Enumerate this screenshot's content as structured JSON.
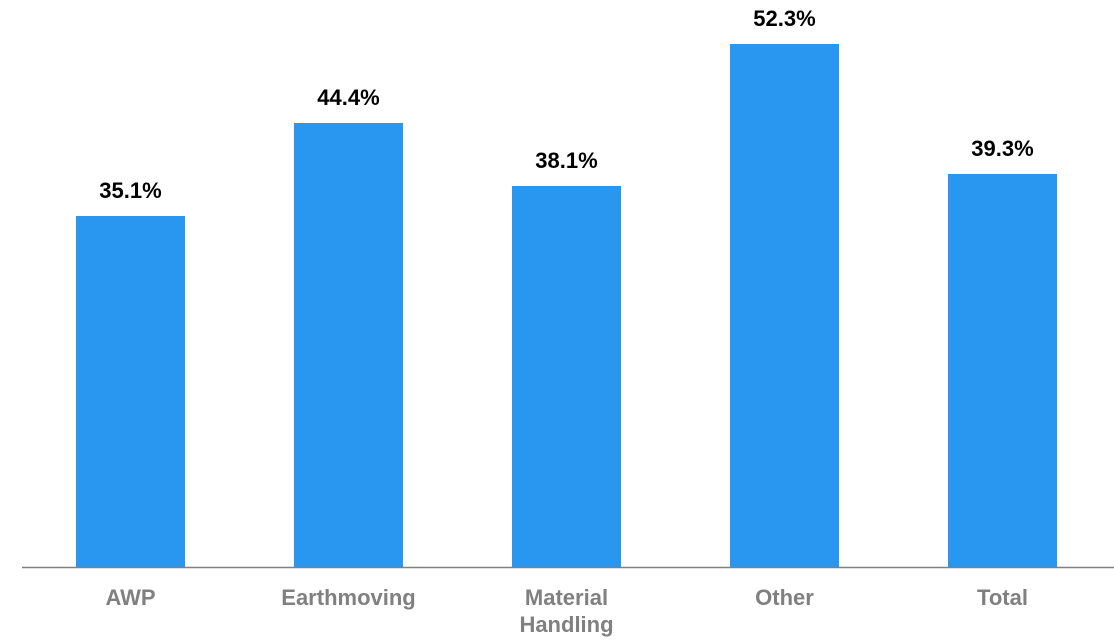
{
  "chart_data": {
    "type": "bar",
    "categories": [
      [
        "AWP"
      ],
      [
        "Earthmoving"
      ],
      [
        "Material",
        "Handling"
      ],
      [
        "Other"
      ],
      [
        "Total"
      ]
    ],
    "values": [
      35.1,
      44.4,
      38.1,
      52.3,
      39.3
    ],
    "value_labels": [
      "35.1%",
      "44.4%",
      "38.1%",
      "52.3%",
      "39.3%"
    ],
    "title": "",
    "xlabel": "",
    "ylabel": "",
    "ylim": [
      0,
      55
    ],
    "grid": false,
    "legend": "none",
    "colors": {
      "bar": "#2997F0",
      "axis": "#808080",
      "value_label": "#000000",
      "category_label": "#808080"
    }
  }
}
